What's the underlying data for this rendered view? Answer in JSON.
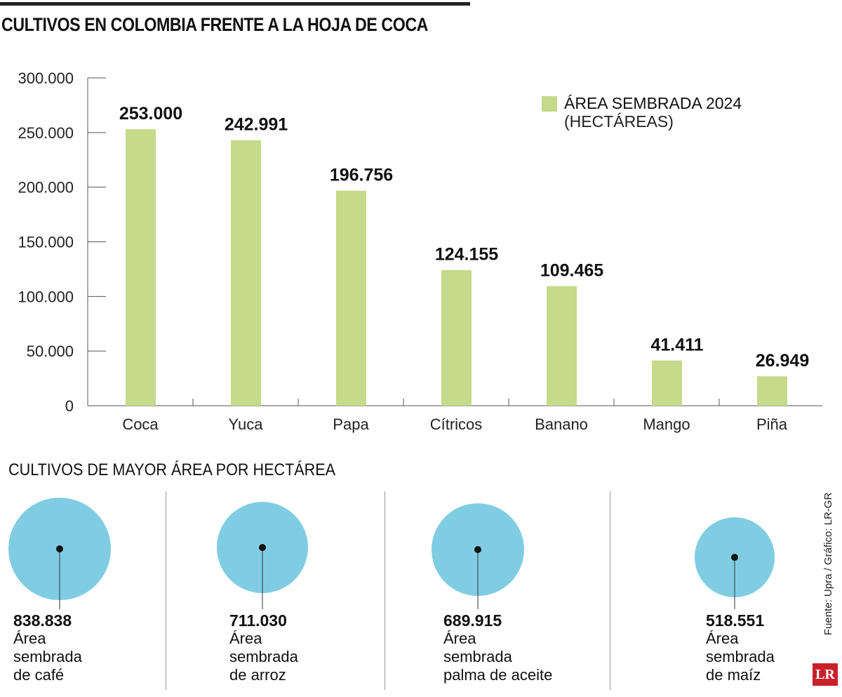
{
  "chart_data": {
    "type": "bar",
    "title": "CULTIVOS EN COLOMBIA FRENTE A LA HOJA DE COCA",
    "categories": [
      "Coca",
      "Yuca",
      "Papa",
      "Cítricos",
      "Banano",
      "Mango",
      "Piña"
    ],
    "values": [
      253000,
      242991,
      196756,
      124155,
      109465,
      41411,
      26949
    ],
    "value_labels": [
      "253.000",
      "242.991",
      "196.756",
      "124.155",
      "109.465",
      "41.411",
      "26.949"
    ],
    "ylim": [
      0,
      300000
    ],
    "yticks": [
      0,
      50000,
      100000,
      150000,
      200000,
      250000,
      300000
    ],
    "ytick_labels": [
      "0",
      "50.000",
      "100.000",
      "150.000",
      "200.000",
      "250.000",
      "300.000"
    ],
    "legend": {
      "label": "ÁREA SEMBRADA 2024",
      "unit": "(HECTÁREAS)",
      "placement": "top-right"
    },
    "bar_color": "#c5da8a",
    "grid": false
  },
  "section2": {
    "title": "CULTIVOS DE MAYOR ÁREA POR HECTÁREA",
    "circle_color": "#80cde3",
    "items": [
      {
        "value": "838.838",
        "l1": "Área",
        "l2": "sembrada",
        "l3": "de café"
      },
      {
        "value": "711.030",
        "l1": "Área",
        "l2": "sembrada",
        "l3": "de arroz"
      },
      {
        "value": "689.915",
        "l1": "Área",
        "l2": "sembrada",
        "l3": "palma de aceite"
      },
      {
        "value": "518.551",
        "l1": "Área",
        "l2": "sembrada",
        "l3": "de maíz"
      }
    ]
  },
  "source": "Fuente: Upra / Gráfico: LR-GR",
  "logo": "LR"
}
